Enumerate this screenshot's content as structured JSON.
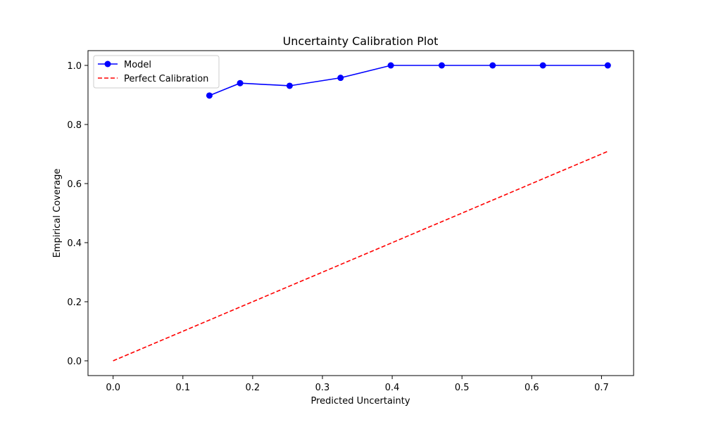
{
  "chart_data": {
    "type": "line",
    "title": "Uncertainty Calibration Plot",
    "xlabel": "Predicted Uncertainty",
    "ylabel": "Empirical Coverage",
    "xlim": [
      -0.036,
      0.746
    ],
    "ylim": [
      -0.05,
      1.05
    ],
    "x_ticks": [
      0.0,
      0.1,
      0.2,
      0.3,
      0.4,
      0.5,
      0.6,
      0.7
    ],
    "y_ticks": [
      0.0,
      0.2,
      0.4,
      0.6,
      0.8,
      1.0
    ],
    "grid": false,
    "legend_position": "top-left",
    "series": [
      {
        "name": "Model",
        "color": "#0000ff",
        "style": "solid",
        "marker": "circle",
        "x": [
          0.138,
          0.182,
          0.253,
          0.326,
          0.398,
          0.471,
          0.544,
          0.616,
          0.709
        ],
        "y": [
          0.898,
          0.94,
          0.931,
          0.958,
          1.0,
          1.0,
          1.0,
          1.0,
          1.0
        ]
      },
      {
        "name": "Perfect Calibration",
        "color": "#ff0000",
        "style": "dashed",
        "marker": "none",
        "x": [
          0.0,
          0.709
        ],
        "y": [
          0.0,
          0.709
        ]
      }
    ]
  }
}
